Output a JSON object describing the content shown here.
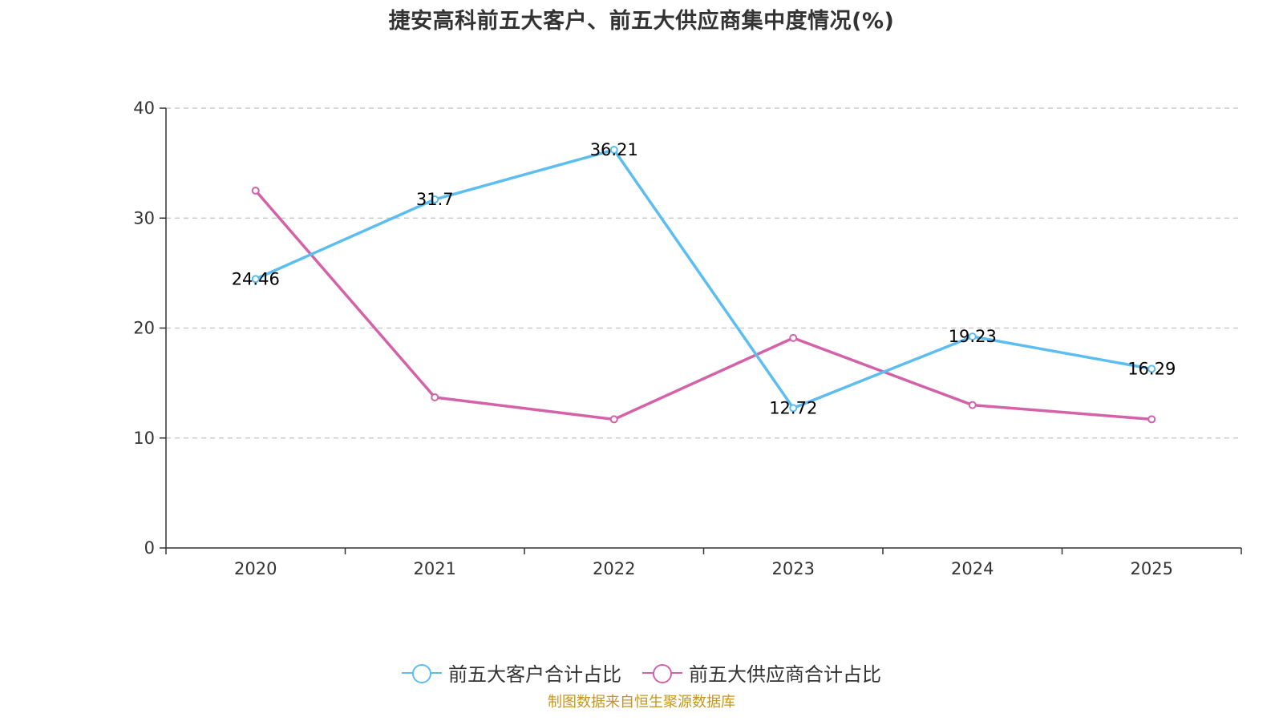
{
  "chart_data": {
    "type": "line",
    "title": "捷安高科前五大客户、前五大供应商集中度情况(%)",
    "categories": [
      "2020",
      "2021",
      "2022",
      "2023",
      "2024",
      "2025"
    ],
    "series": [
      {
        "name": "前五大客户合计占比",
        "color": "#5bbdf0",
        "values": [
          24.46,
          31.7,
          36.21,
          12.72,
          19.23,
          16.29
        ],
        "labels": [
          "24.46",
          "31.7",
          "36.21",
          "12.72",
          "19.23",
          "16.29"
        ],
        "show_labels": true
      },
      {
        "name": "前五大供应商合计占比",
        "color": "#d462a8",
        "values": [
          32.5,
          13.7,
          11.7,
          19.1,
          13.0,
          11.7
        ],
        "show_labels": false
      }
    ],
    "ylim": [
      0,
      40
    ],
    "yticks": [
      "0",
      "10",
      "20",
      "30",
      "40"
    ],
    "ytick_values": [
      0,
      10,
      20,
      30,
      40
    ],
    "grid": true,
    "legend_position": "bottom",
    "xlabel": "",
    "ylabel": ""
  },
  "source": "制图数据来自恒生聚源数据库"
}
